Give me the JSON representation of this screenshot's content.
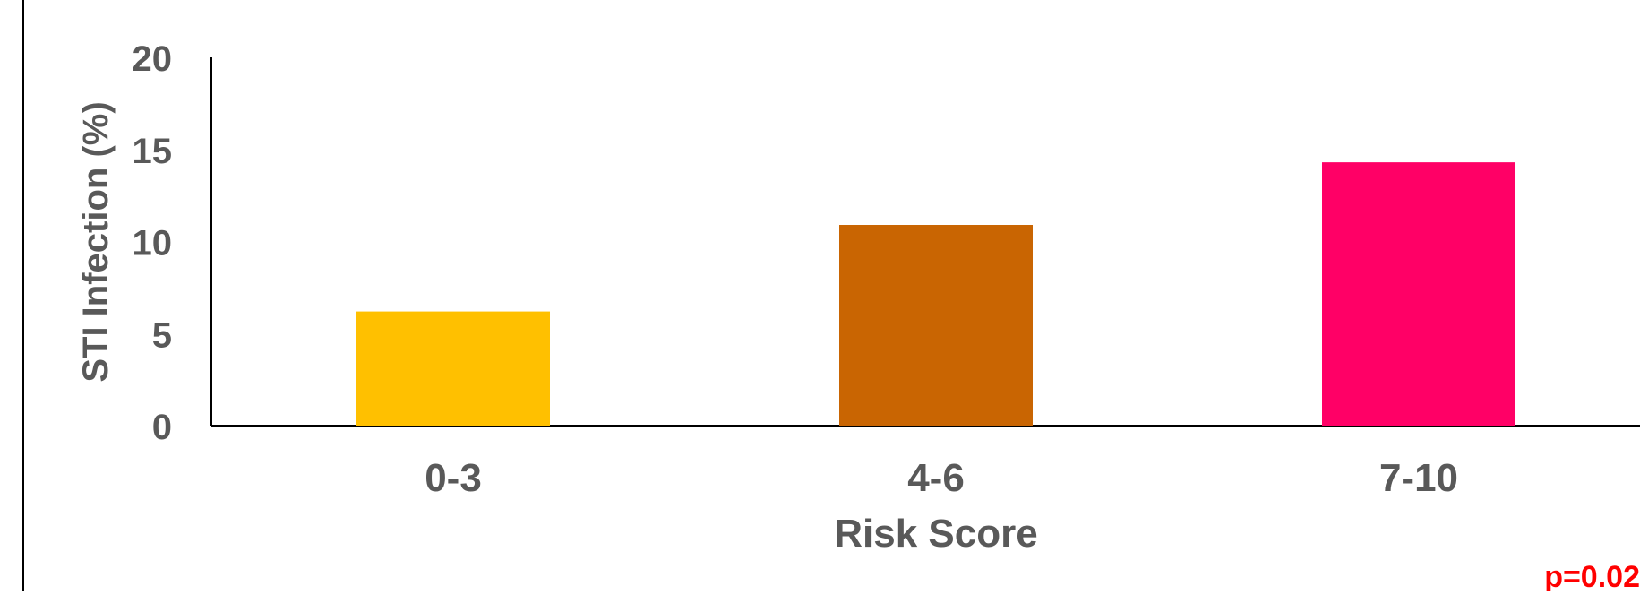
{
  "chart_data": {
    "type": "bar",
    "title": "",
    "categories": [
      "0-3",
      "4-6",
      "7-10"
    ],
    "values": [
      6.2,
      10.9,
      14.3
    ],
    "colors": [
      "#FFC000",
      "#C96502",
      "#FF0066"
    ],
    "xlabel": "Risk Score",
    "ylabel": "STI Infection (%)",
    "ylim": [
      0,
      20
    ],
    "yticks": [
      "0",
      "5",
      "10",
      "15",
      "20"
    ],
    "grid": false,
    "annotations": [
      {
        "text": "p=0.02",
        "color": "#FF0000"
      }
    ]
  }
}
